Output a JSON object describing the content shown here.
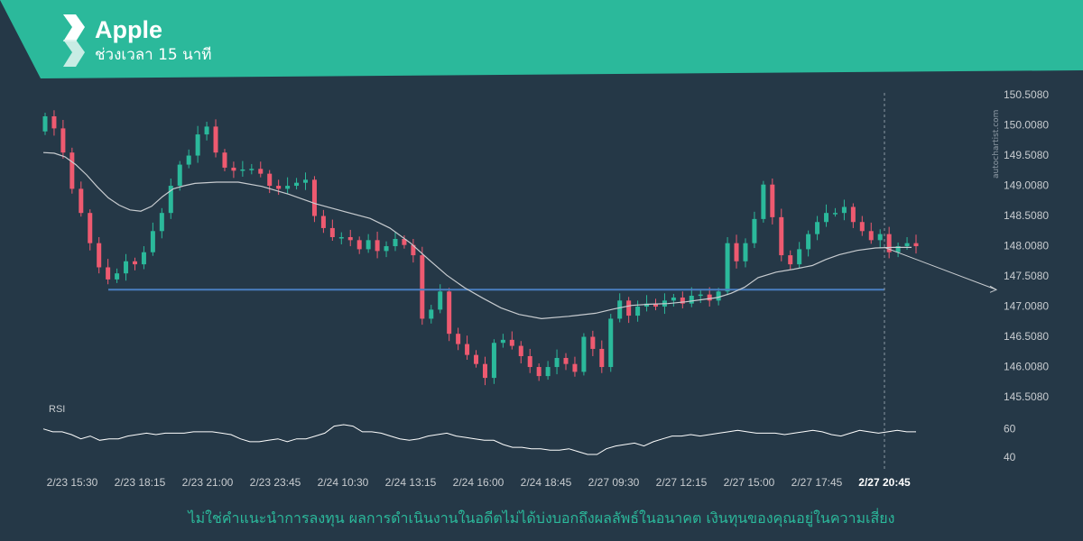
{
  "header": {
    "title": "Apple",
    "subtitle": "ช่วงเวลา 15 นาที"
  },
  "footer": {
    "disclaimer": "ไม่ใช่คำแนะนำการลงทุน ผลการดำเนินงานในอดีตไม่ได้บ่งบอกถึงผลลัพธ์ในอนาคต เงินทุนของคุณอยู่ในความเสี่ยง"
  },
  "watermark": "autochartist.com",
  "colors": {
    "background": "#253847",
    "header": "#2bb99b",
    "up_candle": "#2bb99b",
    "down_candle": "#ee5a70",
    "support_line": "#4a7fc1",
    "moving_average": "#c8ccd0",
    "rsi_line": "#ffffff",
    "axis_text": "#c8ccd0"
  },
  "chart_data": [
    {
      "type": "candlestick",
      "title": "Apple",
      "price_axis_ticks": [
        "150.5080",
        "150.0080",
        "149.5080",
        "149.0080",
        "148.5080",
        "148.0080",
        "147.5080",
        "147.0080",
        "146.5080",
        "146.0080",
        "145.5080"
      ],
      "ylim": [
        145.508,
        150.508
      ],
      "x_ticks": [
        "2/23 15:30",
        "2/23 18:15",
        "2/23 21:00",
        "2/23 23:45",
        "2/24 10:30",
        "2/24 13:15",
        "2/24 16:00",
        "2/24 18:45",
        "2/27 09:30",
        "2/27 12:15",
        "2/27 15:00",
        "2/27 17:45",
        "2/27 20:45"
      ],
      "highlighted_tick": "2/27 20:45",
      "support_level": 147.28,
      "forecast": {
        "from": 147.98,
        "to": 147.28
      },
      "close": [
        150.15,
        149.95,
        149.55,
        148.95,
        148.55,
        148.05,
        147.65,
        147.45,
        147.55,
        147.75,
        147.7,
        147.9,
        148.25,
        148.55,
        149.0,
        149.35,
        149.5,
        149.85,
        149.98,
        149.55,
        149.3,
        149.25,
        149.27,
        149.28,
        149.2,
        149.0,
        148.95,
        149.0,
        149.05,
        149.1,
        148.5,
        148.3,
        148.15,
        148.15,
        148.1,
        147.95,
        148.1,
        147.92,
        148.0,
        148.12,
        148.02,
        147.85,
        146.8,
        146.95,
        147.25,
        146.55,
        146.38,
        146.2,
        146.05,
        145.82,
        146.4,
        146.45,
        146.35,
        146.18,
        146.0,
        145.85,
        146.0,
        146.15,
        146.05,
        145.92,
        146.5,
        146.3,
        146.0,
        146.8,
        147.1,
        146.85,
        147.0,
        147.05,
        147.0,
        147.1,
        147.15,
        147.05,
        147.18,
        147.2,
        147.1,
        147.25,
        148.05,
        147.75,
        148.05,
        148.45,
        149.02,
        148.48,
        147.85,
        147.7,
        147.95,
        148.2,
        148.4,
        148.55,
        148.55,
        148.65,
        148.4,
        148.25,
        148.1,
        148.2,
        147.9,
        148.0,
        148.05,
        148.0
      ],
      "ma": [
        149.55,
        149.54,
        149.48,
        149.35,
        149.18,
        148.98,
        148.8,
        148.68,
        148.6,
        148.58,
        148.66,
        148.82,
        148.95,
        149.0,
        149.04,
        149.06,
        149.06,
        148.99,
        148.86,
        148.7,
        148.58,
        148.46,
        148.3,
        148.05,
        147.78,
        147.52,
        147.31,
        147.14,
        146.98,
        146.87,
        146.8,
        146.84,
        146.89,
        146.96,
        147.02,
        147.04,
        147.05,
        147.08,
        147.12,
        147.15,
        147.22,
        147.32,
        147.48,
        147.57,
        147.62,
        147.68,
        147.78,
        147.86,
        147.93,
        147.97,
        147.98,
        147.98
      ],
      "ma_x": [
        48,
        60,
        72,
        84,
        96,
        108,
        120,
        132,
        144,
        156,
        168,
        180,
        192,
        204,
        216,
        240,
        264,
        290,
        320,
        350,
        380,
        410,
        432,
        455,
        475,
        495,
        515,
        535,
        555,
        575,
        600,
        630,
        660,
        680,
        700,
        720,
        740,
        760,
        780,
        795,
        810,
        825,
        840,
        860,
        880,
        900,
        915,
        930,
        950,
        970,
        990,
        1010
      ]
    },
    {
      "type": "line",
      "title": "RSI",
      "y_ticks": [
        "60",
        "40"
      ],
      "ylim": [
        35,
        70
      ],
      "values": [
        60,
        58,
        58,
        56,
        53,
        55,
        52,
        53,
        53,
        55,
        56,
        57,
        56,
        57,
        57,
        57,
        58,
        58,
        58,
        57,
        56,
        53,
        51,
        51,
        52,
        53,
        51,
        53,
        53,
        55,
        57,
        62,
        63,
        62,
        58,
        58,
        57,
        55,
        53,
        52,
        53,
        55,
        56,
        57,
        55,
        54,
        53,
        52,
        52,
        49,
        47,
        47,
        46,
        46,
        45,
        45,
        46,
        44,
        42,
        42,
        46,
        48,
        49,
        50,
        48,
        51,
        53,
        55,
        55,
        56,
        55,
        56,
        57,
        58,
        59,
        58,
        57,
        57,
        57,
        56,
        57,
        58,
        59,
        58,
        56,
        55,
        57,
        59,
        58,
        57,
        58,
        59,
        58,
        58
      ]
    }
  ]
}
